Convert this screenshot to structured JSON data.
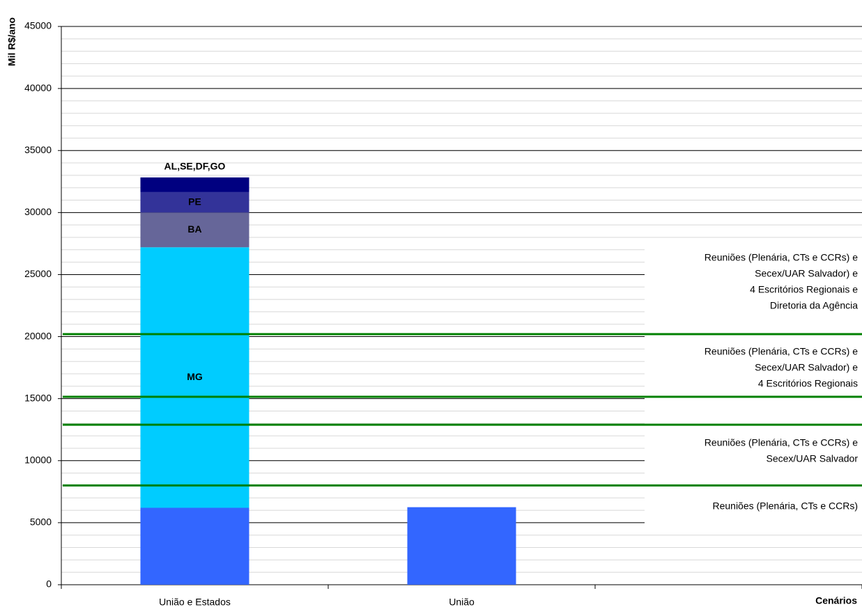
{
  "chart_data": {
    "type": "stacked_bar",
    "y_label": "Mil R$/ano",
    "x_label": "Cenários",
    "categories": [
      "União e Estados",
      "União",
      null
    ],
    "series": [
      {
        "color": "#3366ff",
        "values": [
          6200,
          6250,
          null
        ]
      },
      {
        "name": "MG",
        "color": "#00ccff",
        "label_color": "#000000",
        "values": [
          21000,
          null,
          null
        ]
      },
      {
        "name": "BA",
        "color": "#666699",
        "label_color": "#ffffff",
        "values": [
          2800,
          null,
          null
        ]
      },
      {
        "name": "PE",
        "color": "#333399",
        "label_color": "#ffffff",
        "values": [
          1650,
          null,
          null
        ]
      },
      {
        "name": "AL,SE,DF,GO",
        "color": "#000080",
        "label_color": "#000000",
        "values": [
          1180,
          null,
          null
        ]
      }
    ],
    "ylim": [
      0,
      45000
    ],
    "yticks": [
      0,
      5000,
      10000,
      15000,
      20000,
      25000,
      30000,
      35000,
      40000,
      45000
    ],
    "grid": true,
    "minor_grid_step": 1000,
    "reference_line_color": "#008000",
    "reference_lines": [
      8000,
      12900,
      15150,
      20200
    ],
    "annotations": [
      [
        "Reuniões (Plenária, CTs e CCRs)"
      ],
      [
        "Reuniões (Plenária, CTs e CCRs) e",
        "Secex/UAR Salvador"
      ],
      [
        "Reuniões (Plenária, CTs e CCRs) e",
        "Secex/UAR Salvador) e",
        "4 Escritórios Regionais"
      ],
      [
        "Reuniões (Plenária, CTs e CCRs) e",
        "Secex/UAR Salvador) e",
        "4 Escritórios Regionais e",
        "Diretoria da Agência"
      ]
    ]
  }
}
